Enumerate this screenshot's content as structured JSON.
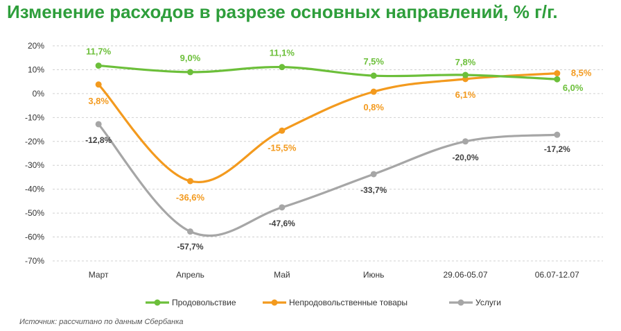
{
  "title": "Изменение расходов в разрезе основных направлений, % г/г.",
  "source": "Источник: рассчитано по данным Сбербанка",
  "colors": {
    "food": "#6cbf3a",
    "nonfood": "#f39a1e",
    "services": "#a6a6a6",
    "title": "#2e9e3b"
  },
  "chart_data": {
    "type": "line",
    "title": "Изменение расходов в разрезе основных направлений, % г/г.",
    "xlabel": "",
    "ylabel": "",
    "ylim": [
      -70,
      20
    ],
    "yticks": [
      20,
      10,
      0,
      -10,
      -20,
      -30,
      -40,
      -50,
      -60,
      -70
    ],
    "ytick_labels": [
      "20%",
      "10%",
      "0%",
      "-10%",
      "-20%",
      "-30%",
      "-40%",
      "-50%",
      "-60%",
      "-70%"
    ],
    "categories": [
      "Март",
      "Апрель",
      "Май",
      "Июнь",
      "29.06-05.07",
      "06.07-12.07"
    ],
    "grid": true,
    "legend_position": "bottom",
    "series": [
      {
        "name": "Продовольствие",
        "color": "#6cbf3a",
        "values": [
          11.7,
          9.0,
          11.1,
          7.5,
          7.8,
          6.0
        ],
        "labels": [
          "11,7%",
          "9,0%",
          "11,1%",
          "7,5%",
          "7,8%",
          "6,0%"
        ]
      },
      {
        "name": "Непродовольственные товары",
        "color": "#f39a1e",
        "values": [
          3.8,
          -36.6,
          -15.5,
          0.8,
          6.1,
          8.5
        ],
        "labels": [
          "3,8%",
          "-36,6%",
          "-15,5%",
          "0,8%",
          "6,1%",
          "8,5%"
        ]
      },
      {
        "name": "Услуги",
        "color": "#a6a6a6",
        "values": [
          -12.8,
          -57.7,
          -47.6,
          -33.7,
          -20.0,
          -17.2
        ],
        "labels": [
          "-12,8%",
          "-57,7%",
          "-47,6%",
          "-33,7%",
          "-20,0%",
          "-17,2%"
        ]
      }
    ]
  }
}
